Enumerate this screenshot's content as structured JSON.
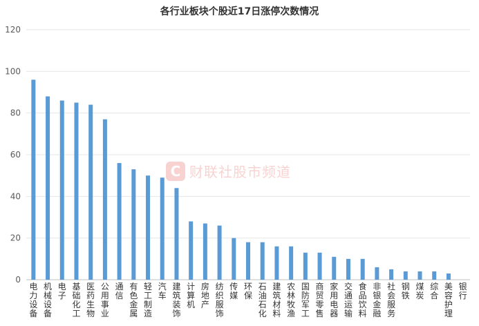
{
  "chart_data": {
    "type": "bar",
    "title": "各行业板块个股近17日涨停次数情况",
    "xlabel": "",
    "ylabel": "",
    "ylim": [
      0,
      120
    ],
    "yticks": [
      0,
      20,
      40,
      60,
      80,
      100,
      120
    ],
    "grid": true,
    "bar_color": "#5b9bd5",
    "categories": [
      "电力设备",
      "机械设备",
      "电子",
      "基础化工",
      "医药生物",
      "公用事业",
      "通信",
      "有色金属",
      "轻工制造",
      "汽车",
      "建筑装饰",
      "计算机",
      "房地产",
      "纺织服饰",
      "传媒",
      "环保",
      "石油石化",
      "建筑材料",
      "农林牧渔",
      "国防军工",
      "商贸零售",
      "家用电器",
      "交通运输",
      "食品饮料",
      "非银金融",
      "社会服务",
      "钢铁",
      "煤炭",
      "综合",
      "美容护理",
      "银行"
    ],
    "values": [
      96,
      88,
      86,
      85,
      84,
      77,
      56,
      53,
      50,
      49,
      44,
      28,
      27,
      26,
      20,
      18,
      18,
      16,
      16,
      13,
      13,
      11,
      10,
      10,
      6,
      5,
      4,
      4,
      4,
      3,
      0
    ]
  },
  "watermark": {
    "logo_letter": "C",
    "text": "财联社股市频道",
    "color": "#e0392f"
  }
}
